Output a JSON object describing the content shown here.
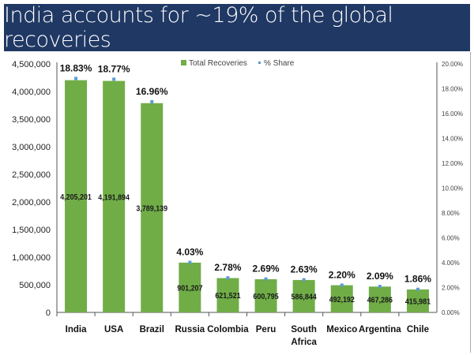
{
  "chart_data": {
    "type": "bar",
    "title": "India accounts for ~19% of the global recoveries",
    "categories": [
      "India",
      "USA",
      "Brazil",
      "Russia",
      "Colombia",
      "Peru",
      "South Africa",
      "Mexico",
      "Argentina",
      "Chile"
    ],
    "series": [
      {
        "name": "Total Recoveries",
        "type": "bar",
        "axis": "left",
        "color": "#70ad47",
        "values": [
          4205201,
          4191894,
          3789139,
          901207,
          621521,
          600795,
          586844,
          492192,
          467286,
          415981
        ],
        "labels": [
          "4,205,201",
          "4,191,894",
          "3,789,139",
          "901,207",
          "621,521",
          "600,795",
          "586,844",
          "492,192",
          "467,286",
          "415,981"
        ]
      },
      {
        "name": "% Share",
        "type": "marker",
        "axis": "right",
        "color": "#5b9bd5",
        "values": [
          18.83,
          18.77,
          16.96,
          4.03,
          2.78,
          2.69,
          2.63,
          2.2,
          2.09,
          1.86
        ],
        "labels": [
          "18.83%",
          "18.77%",
          "16.96%",
          "4.03%",
          "2.78%",
          "2.69%",
          "2.63%",
          "2.20%",
          "2.09%",
          "1.86%"
        ]
      }
    ],
    "yleft": {
      "lim": [
        0,
        4500000
      ],
      "ticks": [
        "0",
        "500,000",
        "1,000,000",
        "1,500,000",
        "2,000,000",
        "2,500,000",
        "3,000,000",
        "3,500,000",
        "4,000,000",
        "4,500,000"
      ]
    },
    "yright": {
      "lim": [
        0,
        20
      ],
      "ticks": [
        "0.00%",
        "2.00%",
        "4.00%",
        "6.00%",
        "8.00%",
        "10.00%",
        "12.00%",
        "14.00%",
        "16.00%",
        "18.00%",
        "20.00%"
      ]
    },
    "legend": "top-center",
    "grid": false
  }
}
